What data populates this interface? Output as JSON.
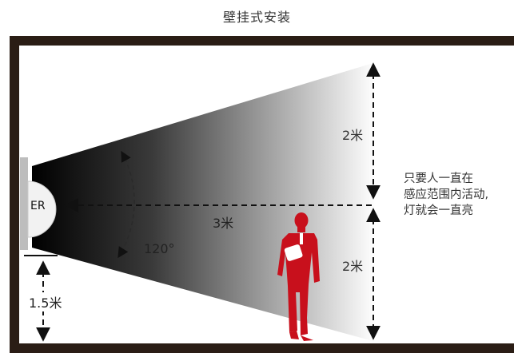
{
  "title": "壁挂式安装",
  "sensor": {
    "label": "ER"
  },
  "dimensions": {
    "top_height": "2米",
    "bottom_height": "2米",
    "range": "3米",
    "angle": "120°",
    "mount_height": "1.5米"
  },
  "note": {
    "lines": [
      "只要人一直在",
      "感应范围内活动,",
      "灯就会一直亮"
    ]
  },
  "colors": {
    "frame": "#2a1d15",
    "person": "#c8101c",
    "cone_dark": "#000000",
    "cone_light": "#ffffff",
    "text": "#333333"
  }
}
